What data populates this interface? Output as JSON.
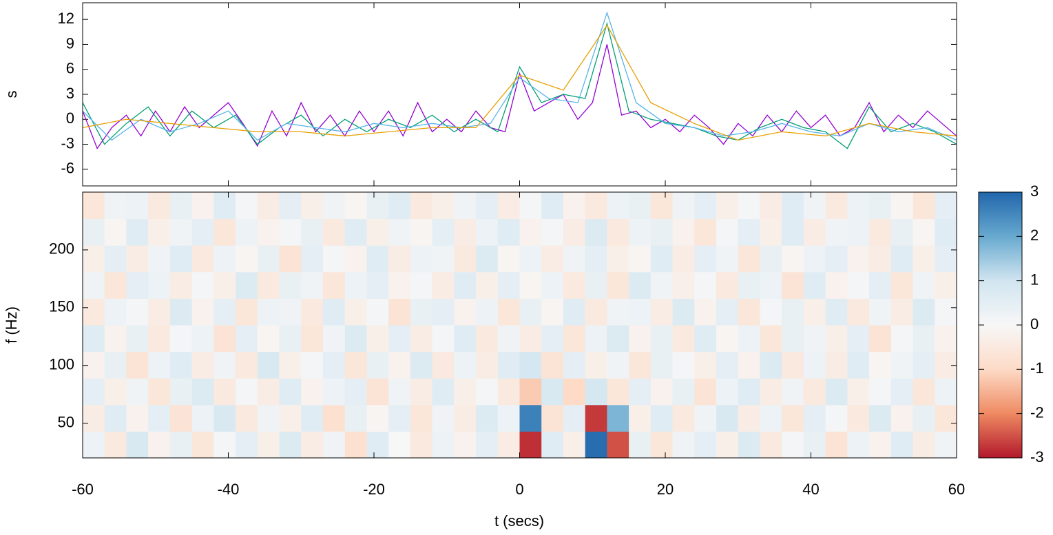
{
  "chart_data": [
    {
      "type": "line",
      "ylabel": "s",
      "xlim": [
        -60,
        60
      ],
      "xticks": [
        -60,
        -40,
        -20,
        0,
        20,
        40,
        60
      ],
      "ylim": [
        -8,
        14
      ],
      "yticks": [
        -6,
        -3,
        0,
        3,
        6,
        9,
        12
      ],
      "series": [
        {
          "color": "#9400d3",
          "x": [
            -60,
            -58,
            -56,
            -54,
            -52,
            -50,
            -48,
            -46,
            -44,
            -42,
            -40,
            -38,
            -36,
            -34,
            -32,
            -30,
            -28,
            -26,
            -24,
            -22,
            -20,
            -18,
            -16,
            -14,
            -12,
            -10,
            -8,
            -6,
            -4,
            -2,
            0,
            2,
            4,
            6,
            8,
            10,
            12,
            14,
            16,
            18,
            20,
            22,
            24,
            26,
            28,
            30,
            32,
            34,
            36,
            38,
            40,
            42,
            44,
            46,
            48,
            50,
            52,
            54,
            56,
            58,
            60
          ],
          "values": [
            1,
            -3.5,
            -1,
            0.5,
            -2,
            1,
            -1.5,
            1.5,
            -1,
            0.5,
            2,
            -0.5,
            -3.2,
            1,
            -2,
            2,
            -1.5,
            0.5,
            -2,
            1,
            -1.5,
            1,
            -2,
            2,
            -1.5,
            0,
            -1.5,
            1,
            -1,
            -1.5,
            5.5,
            1,
            2,
            3,
            0,
            2,
            9,
            0.5,
            1,
            -1,
            0,
            -1.5,
            0.5,
            -1,
            -3,
            -0.5,
            -2,
            0.5,
            -1.5,
            1,
            -1,
            0.5,
            -2,
            -1,
            2,
            -1.5,
            0.5,
            -1,
            1,
            -0.5,
            -2
          ]
        },
        {
          "color": "#009e73",
          "x": [
            -60,
            -57,
            -54,
            -51,
            -48,
            -45,
            -42,
            -39,
            -36,
            -33,
            -30,
            -27,
            -24,
            -21,
            -18,
            -15,
            -12,
            -9,
            -6,
            -3,
            0,
            3,
            6,
            9,
            12,
            15,
            18,
            21,
            24,
            27,
            30,
            33,
            36,
            39,
            42,
            45,
            48,
            51,
            54,
            57,
            60
          ],
          "values": [
            2,
            -3,
            -0.5,
            1.5,
            -2,
            1,
            -1,
            0.5,
            -3,
            -1,
            0.5,
            -2,
            0,
            -1.5,
            0,
            -1,
            0.5,
            -1.5,
            0,
            -1.5,
            6.3,
            2,
            3,
            2.5,
            11.5,
            1,
            0,
            -0.5,
            -1,
            -2,
            -2.5,
            -1,
            0,
            -1,
            -1.5,
            -3.5,
            1.5,
            -1.5,
            -0.5,
            -1.5,
            -3
          ]
        },
        {
          "color": "#56b4e9",
          "x": [
            -60,
            -56,
            -52,
            -48,
            -44,
            -40,
            -36,
            -32,
            -28,
            -24,
            -20,
            -16,
            -12,
            -8,
            -4,
            0,
            4,
            8,
            12,
            16,
            20,
            24,
            28,
            32,
            36,
            40,
            44,
            48,
            52,
            56,
            60
          ],
          "values": [
            1,
            -2.5,
            0,
            -1.5,
            -0.5,
            1,
            -2.5,
            -0.5,
            -1,
            -1.5,
            -0.5,
            -1,
            -0.5,
            -1,
            -0.5,
            5,
            2.5,
            2,
            12.8,
            2,
            -0.5,
            -1,
            -2,
            -1.5,
            -0.5,
            -1.5,
            -2,
            -0.5,
            -1.5,
            -1,
            -2.5
          ]
        },
        {
          "color": "#e69f00",
          "x": [
            -60,
            -54,
            -48,
            -42,
            -36,
            -30,
            -24,
            -18,
            -12,
            -6,
            0,
            6,
            12,
            18,
            24,
            30,
            36,
            42,
            48,
            54,
            60
          ],
          "values": [
            -1,
            0,
            -0.5,
            -1,
            -1.5,
            -1.5,
            -2,
            -1.5,
            -1,
            -1,
            5.3,
            3.5,
            11.3,
            2,
            -0.5,
            -2.5,
            -1.5,
            -2,
            -0.5,
            -1.5,
            -2
          ]
        }
      ]
    },
    {
      "type": "heatmap",
      "xlabel": "t (secs)",
      "ylabel": "f (Hz)",
      "xlim": [
        -60,
        60
      ],
      "xticks": [
        -60,
        -40,
        -20,
        0,
        20,
        40,
        60
      ],
      "ylim": [
        20,
        250
      ],
      "yticks": [
        50,
        100,
        150,
        200
      ],
      "zlim": [
        -3,
        3
      ],
      "zticks": [
        -3,
        -2,
        -1,
        0,
        1,
        2,
        3
      ],
      "colorscale": [
        "#b2182b",
        "#ef8a62",
        "#fddbc7",
        "#f7f7f7",
        "#d1e5f0",
        "#67a9cf",
        "#2166ac"
      ],
      "z": [
        [
          0.3,
          -0.5,
          0.8,
          -0.2,
          0.4,
          -0.6,
          0.1,
          0.5,
          -0.3,
          0.7,
          -0.4,
          0.2,
          -0.8,
          0.6,
          0.0,
          -0.5,
          0.3,
          -0.2,
          0.5,
          -0.4,
          -2.8,
          0.6,
          -0.3,
          2.9,
          -2.5,
          0.4,
          -0.6,
          0.2,
          0.5,
          -0.3,
          0.7,
          -0.5,
          0.1,
          0.4,
          -0.7,
          0.3,
          -0.2,
          0.6,
          -0.4,
          0.2
        ],
        [
          -0.4,
          0.6,
          -0.2,
          0.5,
          -0.7,
          0.3,
          0.8,
          -0.5,
          0.2,
          -0.3,
          0.6,
          -0.8,
          0.4,
          -0.1,
          0.5,
          -0.6,
          0.2,
          -0.4,
          0.7,
          0.3,
          2.6,
          -0.7,
          0.5,
          -2.7,
          1.8,
          -0.3,
          0.6,
          -0.5,
          0.2,
          0.8,
          -0.4,
          0.3,
          -0.6,
          0.5,
          0.1,
          -0.5,
          0.7,
          -0.2,
          0.4,
          -0.6
        ],
        [
          0.5,
          -0.3,
          0.2,
          -0.6,
          0.4,
          0.7,
          -0.5,
          0.1,
          -0.4,
          0.6,
          -0.2,
          0.3,
          0.5,
          -0.7,
          0.2,
          -0.4,
          0.6,
          -0.3,
          0.1,
          -0.5,
          -1.2,
          0.8,
          -1.0,
          0.9,
          -0.6,
          0.5,
          -0.2,
          0.4,
          -0.7,
          0.3,
          0.6,
          -0.4,
          0.2,
          -0.5,
          0.7,
          -0.3,
          0.1,
          0.5,
          -0.6,
          0.3
        ],
        [
          -0.2,
          0.4,
          -0.7,
          0.3,
          0.6,
          -0.4,
          0.2,
          -0.5,
          0.8,
          -0.3,
          0.1,
          0.5,
          -0.6,
          0.4,
          -0.2,
          0.7,
          -0.5,
          0.3,
          -0.4,
          0.6,
          0.9,
          -0.7,
          0.5,
          -0.3,
          0.2,
          -0.6,
          0.4,
          0.1,
          -0.3,
          0.5,
          -0.2,
          0.7,
          -0.5,
          0.3,
          -0.4,
          0.6,
          -0.1,
          0.2,
          0.5,
          -0.4
        ],
        [
          0.6,
          -0.2,
          0.4,
          -0.5,
          0.1,
          0.3,
          -0.7,
          0.5,
          -0.1,
          0.4,
          -0.6,
          0.2,
          0.7,
          -0.3,
          0.5,
          -0.4,
          0.1,
          0.6,
          -0.5,
          0.2,
          -0.4,
          0.5,
          -0.6,
          0.3,
          0.7,
          -0.2,
          0.4,
          -0.5,
          0.6,
          -0.1,
          0.3,
          -0.6,
          0.4,
          0.2,
          -0.3,
          0.5,
          -0.7,
          0.1,
          0.4,
          -0.2
        ],
        [
          -0.5,
          0.3,
          0.1,
          -0.4,
          0.7,
          -0.2,
          0.5,
          -0.6,
          0.3,
          0.2,
          -0.5,
          0.6,
          -0.3,
          0.1,
          -0.7,
          0.4,
          0.5,
          -0.2,
          0.3,
          -0.6,
          0.4,
          -0.1,
          0.6,
          -0.5,
          0.2,
          0.3,
          -0.4,
          0.7,
          -0.2,
          0.5,
          -0.6,
          0.1,
          0.4,
          -0.3,
          0.6,
          -0.5,
          0.2,
          -0.4,
          0.7,
          0.1
        ],
        [
          0.2,
          -0.6,
          0.5,
          0.3,
          -0.4,
          0.1,
          -0.3,
          0.7,
          -0.5,
          0.4,
          0.2,
          -0.6,
          0.3,
          0.5,
          -0.2,
          0.1,
          -0.4,
          0.6,
          -0.3,
          0.5,
          -0.1,
          0.3,
          -0.5,
          0.4,
          -0.6,
          0.7,
          0.2,
          -0.3,
          0.1,
          -0.5,
          0.4,
          0.3,
          -0.7,
          0.6,
          -0.2,
          0.1,
          0.5,
          -0.6,
          0.2,
          -0.3
        ],
        [
          -0.3,
          0.5,
          -0.4,
          0.2,
          0.6,
          -0.5,
          0.3,
          -0.1,
          0.4,
          -0.7,
          0.5,
          0.1,
          -0.2,
          0.6,
          -0.4,
          0.3,
          0.2,
          -0.5,
          0.7,
          -0.1,
          0.3,
          -0.4,
          0.2,
          0.5,
          -0.3,
          -0.1,
          0.6,
          -0.4,
          0.5,
          0.2,
          -0.6,
          0.4,
          -0.1,
          0.3,
          0.5,
          -0.2,
          -0.4,
          0.6,
          -0.3,
          0.5
        ],
        [
          0.4,
          -0.1,
          0.6,
          -0.3,
          0.2,
          0.5,
          -0.6,
          0.3,
          -0.2,
          0.1,
          0.4,
          -0.5,
          0.6,
          -0.3,
          0.2,
          -0.1,
          0.5,
          -0.4,
          0.3,
          0.6,
          -0.2,
          0.1,
          -0.4,
          0.7,
          -0.5,
          0.3,
          0.4,
          -0.2,
          -0.6,
          0.1,
          0.5,
          -0.3,
          0.6,
          -0.4,
          0.2,
          0.3,
          -0.5,
          0.4,
          -0.1,
          0.6
        ],
        [
          -0.6,
          0.2,
          0.3,
          -0.5,
          0.4,
          -0.2,
          0.6,
          0.1,
          -0.4,
          0.5,
          -0.3,
          0.2,
          -0.1,
          0.4,
          0.6,
          -0.5,
          -0.3,
          0.2,
          0.5,
          -0.4,
          0.1,
          0.6,
          -0.2,
          -0.5,
          0.3,
          0.4,
          -0.6,
          0.2,
          0.5,
          -0.3,
          0.1,
          -0.4,
          0.6,
          0.2,
          -0.5,
          0.3,
          0.4,
          -0.1,
          -0.6,
          0.5
        ]
      ]
    }
  ]
}
